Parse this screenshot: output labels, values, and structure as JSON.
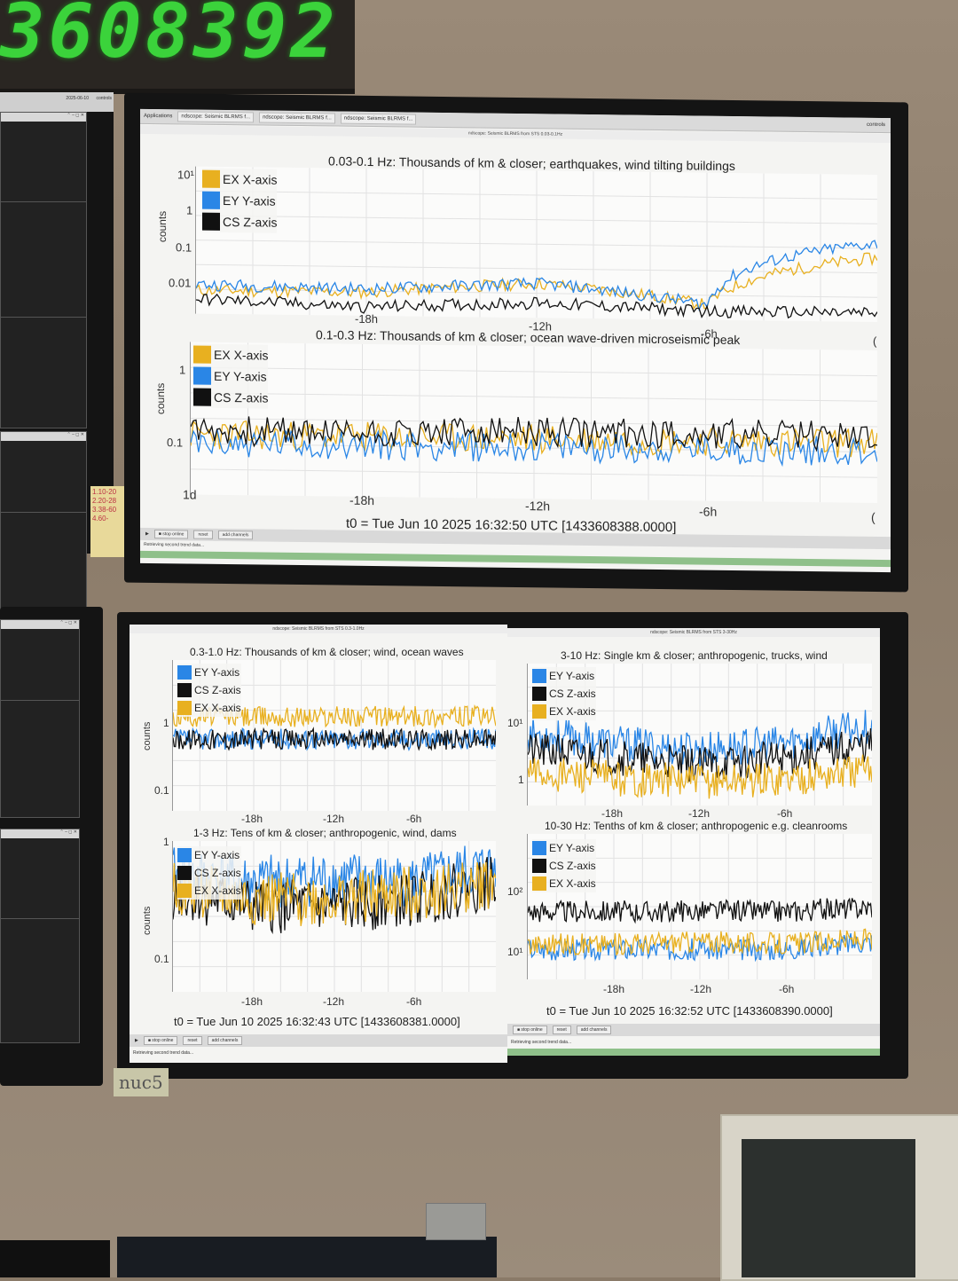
{
  "clock": {
    "digits": "3608392"
  },
  "left_taskbar": {
    "date": "2025-06-10",
    "user": "controls"
  },
  "sticky": {
    "lines": [
      "1.10-20",
      "2.20-28",
      "3.38-60",
      "4.60-",
      ""
    ]
  },
  "room_label": "nuc5",
  "colors": {
    "orange": "#e8b020",
    "blue": "#2a86e6",
    "black": "#111111"
  },
  "top": {
    "taskbar": {
      "apps": "Applications",
      "windows": [
        "ndscope: Seismic BLRMS f...",
        "ndscope: Seismic BLRMS f...",
        "ndscope: Seismic BLRMS f..."
      ],
      "user": "controls"
    },
    "window_title": "ndscope: Seismic BLRMS from STS 0.03-0.1Hz",
    "plot1": {
      "title": "0.03-0.1 Hz: Thousands of km & closer; earthquakes, wind tilting buildings",
      "ylabel": "counts",
      "yticks": [
        "10¹",
        "1",
        "0.1",
        "0.01"
      ],
      "xticks": [
        "-18h",
        "-12h",
        "-6h",
        "("
      ],
      "legend": [
        "EX X-axis",
        "EY Y-axis",
        "CS Z-axis"
      ]
    },
    "plot2": {
      "title": "0.1-0.3 Hz: Thousands of km & closer; ocean wave-driven microseismic peak",
      "ylabel": "counts",
      "yticks": [
        "1",
        "0.1"
      ],
      "range": "1d",
      "xticks": [
        "-18h",
        "-12h",
        "-6h",
        "("
      ],
      "legend": [
        "EX X-axis",
        "EY Y-axis",
        "CS Z-axis"
      ]
    },
    "t0": "t0 = Tue Jun 10 2025 16:32:50 UTC [1433608388.0000]",
    "buttons": {
      "stop_online": "■ stop online",
      "reset": "reset",
      "add_channels": "add channels"
    },
    "status": "Retrieving second trend data..."
  },
  "bottom_left": {
    "window_title": "ndscope: Seismic BLRMS from STS 0.3-1.0Hz",
    "plot1": {
      "title": "0.3-1.0 Hz: Thousands of km & closer; wind, ocean waves",
      "ylabel": "counts",
      "yticks": [
        "1",
        "0.1"
      ],
      "xticks": [
        "-18h",
        "-12h",
        "-6h"
      ],
      "legend": [
        "EY Y-axis",
        "CS Z-axis",
        "EX X-axis"
      ]
    },
    "plot2": {
      "title": "1-3 Hz: Tens of km & closer; anthropogenic, wind, dams",
      "ylabel": "counts",
      "yticks": [
        "1",
        "0.1"
      ],
      "xticks": [
        "-18h",
        "-12h",
        "-6h"
      ],
      "legend": [
        "EY Y-axis",
        "CS Z-axis",
        "EX X-axis"
      ]
    },
    "t0": "t0 = Tue Jun 10 2025 16:32:43 UTC [1433608381.0000]",
    "buttons": {
      "stop_online": "■ stop online",
      "reset": "reset",
      "add_channels": "add channels"
    },
    "status": "Retrieving second trend data..."
  },
  "bottom_right": {
    "window_title": "ndscope: Seismic BLRMS from STS 3-30Hz",
    "plot1": {
      "title": "3-10 Hz: Single km & closer; anthropogenic, trucks, wind",
      "yticks": [
        "10¹",
        "1"
      ],
      "xticks": [
        "-18h",
        "-12h",
        "-6h"
      ],
      "legend": [
        "EY Y-axis",
        "CS Z-axis",
        "EX X-axis"
      ]
    },
    "plot2": {
      "title": "10-30 Hz: Tenths of km & closer; anthropogenic e.g. cleanrooms",
      "yticks": [
        "10²",
        "10¹"
      ],
      "xticks": [
        "-18h",
        "-12h",
        "-6h"
      ],
      "legend": [
        "EY Y-axis",
        "CS Z-axis",
        "EX X-axis"
      ]
    },
    "t0": "t0 = Tue Jun 10 2025 16:32:52 UTC [1433608390.0000]",
    "buttons": {
      "stop_online": "■ stop online",
      "reset": "reset",
      "add_channels": "add channels"
    },
    "status": "Retrieving second trend data..."
  },
  "chart_data": [
    {
      "type": "line",
      "title": "0.03-0.1 Hz: Thousands of km & closer; earthquakes, wind tilting buildings",
      "ylabel": "counts",
      "yscale": "log",
      "ylim": [
        0.01,
        10
      ],
      "x": [
        -24,
        -18,
        -12,
        -6,
        0
      ],
      "series": [
        {
          "name": "EX X-axis",
          "color": "#e8b020",
          "values": [
            0.03,
            0.03,
            0.05,
            0.02,
            0.2
          ]
        },
        {
          "name": "EY Y-axis",
          "color": "#2a86e6",
          "values": [
            0.04,
            0.035,
            0.05,
            0.02,
            0.4
          ]
        },
        {
          "name": "CS Z-axis",
          "color": "#111111",
          "values": [
            0.02,
            0.015,
            0.02,
            0.015,
            0.015
          ]
        }
      ]
    },
    {
      "type": "line",
      "title": "0.1-0.3 Hz: Thousands of km & closer; ocean wave-driven microseismic peak",
      "ylabel": "counts",
      "yscale": "log",
      "ylim": [
        0.05,
        3
      ],
      "x": [
        -24,
        -18,
        -12,
        -6,
        0
      ],
      "series": [
        {
          "name": "EX X-axis",
          "color": "#e8b020",
          "values": [
            0.25,
            0.25,
            0.25,
            0.25,
            0.25
          ]
        },
        {
          "name": "EY Y-axis",
          "color": "#2a86e6",
          "values": [
            0.2,
            0.2,
            0.2,
            0.2,
            0.2
          ]
        },
        {
          "name": "CS Z-axis",
          "color": "#111111",
          "values": [
            0.28,
            0.28,
            0.3,
            0.3,
            0.3
          ]
        }
      ]
    },
    {
      "type": "line",
      "title": "0.3-1.0 Hz: Thousands of km & closer; wind, ocean waves",
      "ylabel": "counts",
      "yscale": "log",
      "ylim": [
        0.05,
        3
      ],
      "x": [
        -24,
        -18,
        -12,
        -6,
        0
      ],
      "series": [
        {
          "name": "EY Y-axis",
          "color": "#2a86e6",
          "values": [
            0.35,
            0.35,
            0.35,
            0.35,
            0.35
          ]
        },
        {
          "name": "CS Z-axis",
          "color": "#111111",
          "values": [
            0.35,
            0.35,
            0.35,
            0.35,
            0.35
          ]
        },
        {
          "name": "EX X-axis",
          "color": "#e8b020",
          "values": [
            0.65,
            0.65,
            0.65,
            0.65,
            0.65
          ]
        }
      ]
    },
    {
      "type": "line",
      "title": "1-3 Hz: Tens of km & closer; anthropogenic, wind, dams",
      "ylabel": "counts",
      "yscale": "log",
      "ylim": [
        0.05,
        1.2
      ],
      "x": [
        -24,
        -18,
        -12,
        -6,
        0
      ],
      "series": [
        {
          "name": "EY Y-axis",
          "color": "#2a86e6",
          "values": [
            0.6,
            0.5,
            0.55,
            0.5,
            0.7
          ]
        },
        {
          "name": "CS Z-axis",
          "color": "#111111",
          "values": [
            0.4,
            0.3,
            0.3,
            0.35,
            0.5
          ]
        },
        {
          "name": "EX X-axis",
          "color": "#e8b020",
          "values": [
            0.45,
            0.35,
            0.35,
            0.4,
            0.5
          ]
        }
      ]
    },
    {
      "type": "line",
      "title": "3-10 Hz: Single km & closer; anthropogenic, trucks, wind",
      "yscale": "log",
      "ylim": [
        0.5,
        30
      ],
      "x": [
        -24,
        -18,
        -12,
        -6,
        0
      ],
      "series": [
        {
          "name": "EY Y-axis",
          "color": "#2a86e6",
          "values": [
            4,
            3,
            2.5,
            3,
            5
          ]
        },
        {
          "name": "CS Z-axis",
          "color": "#111111",
          "values": [
            2.5,
            2,
            1.6,
            2,
            3
          ]
        },
        {
          "name": "EX X-axis",
          "color": "#e8b020",
          "values": [
            1.3,
            1.1,
            1,
            1.1,
            1.4
          ]
        }
      ]
    },
    {
      "type": "line",
      "title": "10-30 Hz: Tenths of km & closer; anthropogenic e.g. cleanrooms",
      "yscale": "log",
      "ylim": [
        5,
        1000
      ],
      "x": [
        -24,
        -18,
        -12,
        -6,
        0
      ],
      "series": [
        {
          "name": "EY Y-axis",
          "color": "#2a86e6",
          "values": [
            15,
            15,
            15,
            15,
            20
          ]
        },
        {
          "name": "CS Z-axis",
          "color": "#111111",
          "values": [
            60,
            60,
            60,
            60,
            70
          ]
        },
        {
          "name": "EX X-axis",
          "color": "#e8b020",
          "values": [
            18,
            18,
            20,
            18,
            22
          ]
        }
      ]
    }
  ]
}
